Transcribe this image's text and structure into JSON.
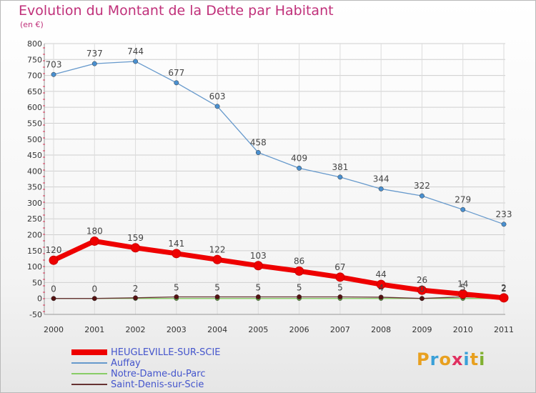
{
  "header": {
    "title": "Evolution du Montant de la Dette par Habitant",
    "subtitle": "(en €)"
  },
  "logo": {
    "text": "Proxiti",
    "colors": [
      "#e8a020",
      "#3aa0d8",
      "#e8a020",
      "#e03060",
      "#3aa0d8",
      "#e8a020",
      "#80b030"
    ]
  },
  "chart_data": {
    "type": "line",
    "title": "Evolution du Montant de la Dette par Habitant",
    "subtitle": "(en €)",
    "xlabel": "",
    "ylabel": "",
    "x": [
      "2000",
      "2001",
      "2002",
      "2003",
      "2004",
      "2005",
      "2006",
      "2007",
      "2008",
      "2009",
      "2010",
      "2011"
    ],
    "ylim": [
      -50,
      800
    ],
    "yticks": [
      -50,
      0,
      50,
      100,
      150,
      200,
      250,
      300,
      350,
      400,
      450,
      500,
      550,
      600,
      650,
      700,
      750,
      800
    ],
    "legend_position": "bottom-left",
    "series": [
      {
        "name": "HEUGLEVILLE-SUR-SCIE",
        "color": "#ee0000",
        "values": [
          120,
          180,
          159,
          141,
          122,
          103,
          86,
          67,
          44,
          26,
          14,
          2
        ],
        "show_labels": true
      },
      {
        "name": "Auffay",
        "color": "#6699cc",
        "values": [
          703,
          737,
          744,
          677,
          603,
          458,
          409,
          381,
          344,
          322,
          279,
          233
        ],
        "show_labels": true
      },
      {
        "name": "Notre-Dame-du-Parc",
        "color": "#88cc66",
        "values": [
          0,
          0,
          0,
          0,
          0,
          0,
          0,
          0,
          0,
          0,
          0,
          0
        ],
        "show_labels": false
      },
      {
        "name": "Saint-Denis-sur-Scie",
        "color": "#663333",
        "values": [
          0,
          0,
          2,
          5,
          5,
          5,
          5,
          5,
          4,
          0,
          5,
          2
        ],
        "show_labels": true
      }
    ]
  }
}
